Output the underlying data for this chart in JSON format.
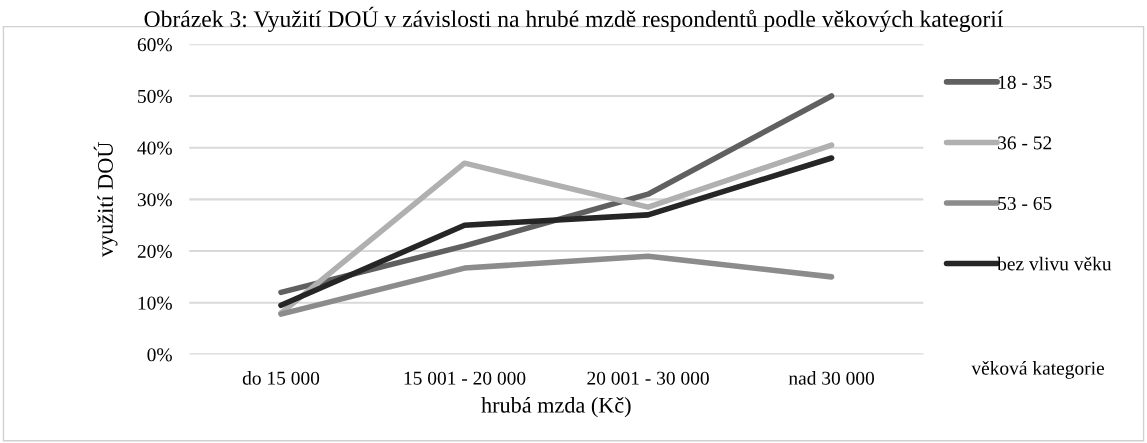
{
  "chart_data": {
    "type": "line",
    "title": "Obrázek 3: Využití DOÚ v závislosti na hrubé mzdě respondentů podle věkových kategorií",
    "xlabel": "hrubá mzda (Kč)",
    "ylabel": "využití DOÚ",
    "legend_title": "věková kategorie",
    "categories": [
      "do 15 000",
      "15 001 - 20 000",
      "20 001 - 30 000",
      "nad 30 000"
    ],
    "series": [
      {
        "name": "18 - 35",
        "color": "#606060",
        "values": [
          12,
          21,
          31,
          50
        ]
      },
      {
        "name": "36 - 52",
        "color": "#b0b0b0",
        "values": [
          8,
          37,
          28.5,
          40.5
        ]
      },
      {
        "name": "53 - 65",
        "color": "#8c8c8c",
        "values": [
          7.8,
          16.7,
          19,
          15
        ]
      },
      {
        "name": "bez vlivu věku",
        "color": "#262626",
        "values": [
          9.5,
          25,
          27,
          38
        ]
      }
    ],
    "ylim": [
      0,
      60
    ],
    "yticks": [
      {
        "value": 0,
        "label": "0%"
      },
      {
        "value": 10,
        "label": "10%"
      },
      {
        "value": 20,
        "label": "20%"
      },
      {
        "value": 30,
        "label": "30%"
      },
      {
        "value": 40,
        "label": "40%"
      },
      {
        "value": 50,
        "label": "50%"
      },
      {
        "value": 60,
        "label": "60%"
      }
    ],
    "grid": "y",
    "legend": "right",
    "marker": "none",
    "line_style": "solid"
  }
}
